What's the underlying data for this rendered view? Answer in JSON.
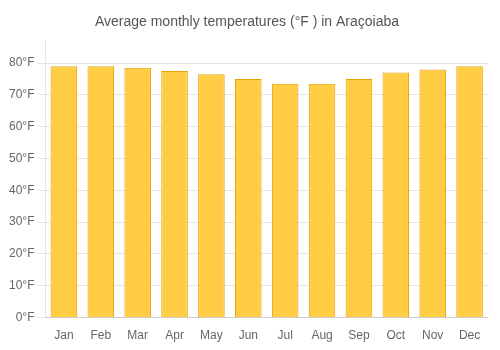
{
  "chart_data": {
    "type": "bar",
    "title": "Average monthly temperatures (°F ) in Araçoiaba",
    "categories": [
      "Jan",
      "Feb",
      "Mar",
      "Apr",
      "May",
      "Jun",
      "Jul",
      "Aug",
      "Sep",
      "Oct",
      "Nov",
      "Dec"
    ],
    "values": [
      79,
      79,
      78.5,
      77.5,
      76.5,
      75,
      73.5,
      73.5,
      75,
      77,
      78,
      79
    ],
    "color": "#FFCC44",
    "ylim": [
      0,
      87
    ],
    "yticks": [
      {
        "value": 0,
        "label": "0°F"
      },
      {
        "value": 10,
        "label": "10°F"
      },
      {
        "value": 20,
        "label": "20°F"
      },
      {
        "value": 30,
        "label": "30°F"
      },
      {
        "value": 40,
        "label": "40°F"
      },
      {
        "value": 50,
        "label": "50°F"
      },
      {
        "value": 60,
        "label": "60°F"
      },
      {
        "value": 70,
        "label": "70°F"
      },
      {
        "value": 80,
        "label": "80°F"
      }
    ],
    "grid": true
  }
}
